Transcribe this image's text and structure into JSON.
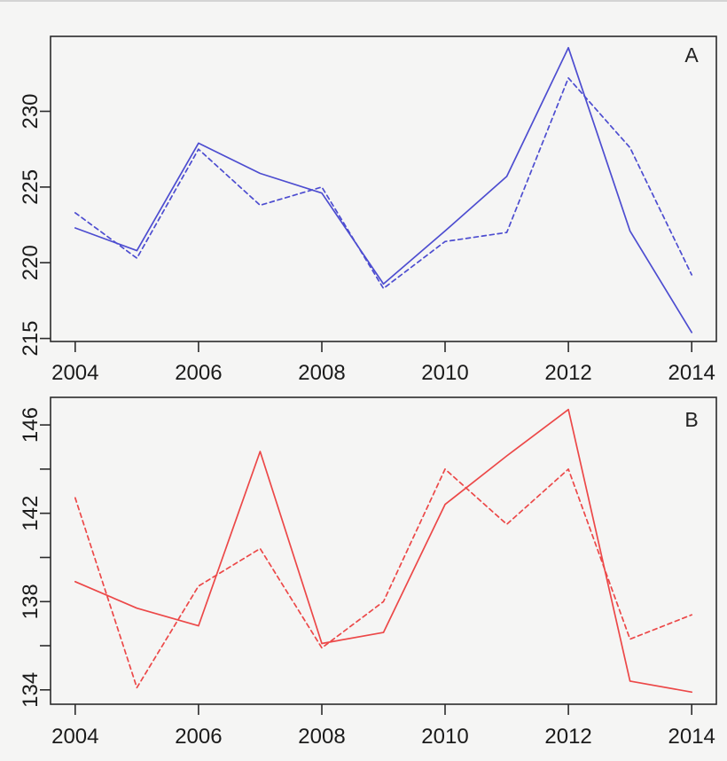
{
  "page": {
    "background_color": "#f5f5f4",
    "top_edge_color": "#d4d4d4",
    "axis_color": "#2b2b2b",
    "text_color": "#1b1b1b"
  },
  "chart_data": [
    {
      "type": "line",
      "panel_label": "A",
      "line_color": "#4d4dd0",
      "x": [
        2004,
        2005,
        2006,
        2007,
        2008,
        2009,
        2010,
        2011,
        2012,
        2013,
        2014
      ],
      "xlim": [
        2003.6,
        2014.4
      ],
      "ylim": [
        214.8,
        234.95
      ],
      "grid": false,
      "legend": null,
      "xticks": [
        {
          "value": 2004,
          "label": "2004"
        },
        {
          "value": 2006,
          "label": "2006"
        },
        {
          "value": 2008,
          "label": "2008"
        },
        {
          "value": 2010,
          "label": "2010"
        },
        {
          "value": 2012,
          "label": "2012"
        },
        {
          "value": 2014,
          "label": "2014"
        }
      ],
      "yticks": [
        {
          "value": 215,
          "label": "215"
        },
        {
          "value": 220,
          "label": "220"
        },
        {
          "value": 225,
          "label": "225"
        },
        {
          "value": 230,
          "label": "230"
        }
      ],
      "series": [
        {
          "name": "solid",
          "dash": "solid",
          "values": [
            222.3,
            220.8,
            227.9,
            225.9,
            224.6,
            218.6,
            222.1,
            225.7,
            234.2,
            222.1,
            215.4
          ]
        },
        {
          "name": "dashed",
          "dash": "dashed",
          "values": [
            223.3,
            220.3,
            227.5,
            223.8,
            225.0,
            218.3,
            221.4,
            222.0,
            232.2,
            227.6,
            219.2
          ]
        }
      ]
    },
    {
      "type": "line",
      "panel_label": "B",
      "line_color": "#ec4848",
      "x": [
        2004,
        2005,
        2006,
        2007,
        2008,
        2009,
        2010,
        2011,
        2012,
        2013,
        2014
      ],
      "xlim": [
        2003.6,
        2014.4
      ],
      "ylim": [
        133.35,
        147.25
      ],
      "grid": false,
      "legend": null,
      "xticks": [
        {
          "value": 2004,
          "label": "2004"
        },
        {
          "value": 2006,
          "label": "2006"
        },
        {
          "value": 2008,
          "label": "2008"
        },
        {
          "value": 2010,
          "label": "2010"
        },
        {
          "value": 2012,
          "label": "2012"
        },
        {
          "value": 2014,
          "label": "2014"
        }
      ],
      "yticks": [
        {
          "value": 134,
          "label": "134"
        },
        {
          "value": 136,
          "label": ""
        },
        {
          "value": 138,
          "label": "138"
        },
        {
          "value": 140,
          "label": ""
        },
        {
          "value": 142,
          "label": "142"
        },
        {
          "value": 144,
          "label": ""
        },
        {
          "value": 146,
          "label": "146"
        }
      ],
      "series": [
        {
          "name": "solid",
          "dash": "solid",
          "values": [
            138.9,
            137.7,
            136.9,
            144.8,
            136.1,
            136.6,
            142.4,
            144.6,
            146.7,
            134.4,
            133.9
          ]
        },
        {
          "name": "dashed",
          "dash": "dashed",
          "values": [
            142.7,
            134.1,
            138.7,
            140.4,
            135.9,
            138.0,
            144.0,
            141.5,
            144.0,
            136.3,
            137.4
          ]
        }
      ]
    }
  ]
}
